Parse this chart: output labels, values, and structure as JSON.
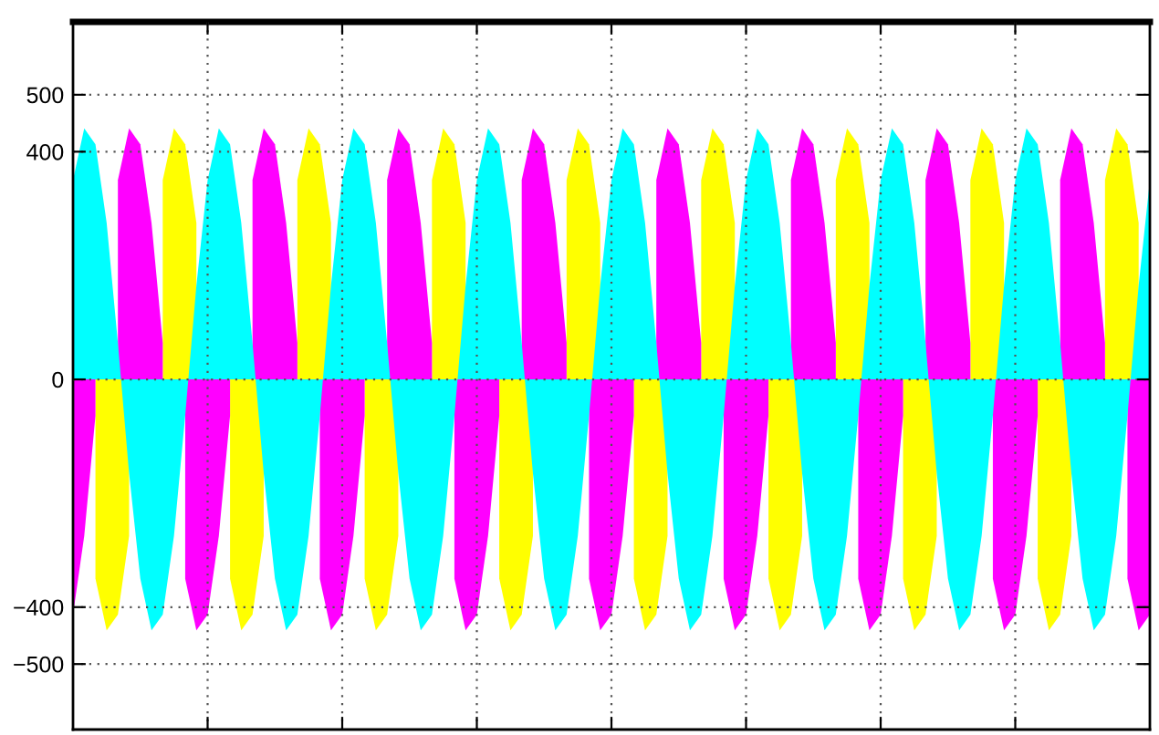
{
  "chart_data": {
    "type": "area",
    "categories": [
      null,
      null,
      null,
      null,
      null,
      null,
      null,
      null,
      null,
      null,
      null,
      null,
      null,
      null,
      null,
      null,
      null,
      null,
      null,
      null,
      null,
      null,
      null,
      null,
      null,
      null,
      null,
      null,
      null,
      null,
      null,
      null,
      null,
      null,
      null,
      null,
      null,
      null,
      null,
      null,
      null,
      null,
      null,
      null,
      null,
      null,
      null,
      null,
      null,
      null,
      null,
      null,
      null,
      null,
      null,
      null,
      null,
      null,
      null,
      null,
      null,
      null,
      null,
      null,
      null,
      null,
      null,
      null,
      null,
      null,
      null,
      null,
      null,
      null,
      null,
      null,
      null,
      null,
      null,
      null,
      null,
      null,
      null,
      null,
      null,
      null,
      null,
      null,
      null,
      null,
      null,
      null,
      null,
      null,
      null,
      null,
      null
    ],
    "series": [
      {
        "color": "#ffff00",
        "values": [
          null,
          null,
          -350,
          -441,
          -413,
          -275,
          null,
          null,
          350,
          441,
          413,
          275,
          null,
          null,
          -350,
          -441,
          -413,
          -275,
          null,
          null,
          350,
          441,
          413,
          275,
          null,
          null,
          -350,
          -441,
          -413,
          -275,
          null,
          null,
          350,
          441,
          413,
          275,
          null,
          null,
          -350,
          -441,
          -413,
          -275,
          null,
          null,
          350,
          441,
          413,
          275,
          null,
          null,
          -350,
          -441,
          -413,
          -275,
          null,
          null,
          350,
          441,
          413,
          275,
          null,
          null,
          -350,
          -441,
          -413,
          -275,
          null,
          null,
          350,
          441,
          413,
          275,
          null,
          null,
          -350,
          -441,
          -413,
          -275,
          null,
          null,
          350,
          441,
          413,
          275,
          null,
          null,
          -350,
          -441,
          -413,
          -275,
          null,
          null,
          350,
          441,
          413,
          275,
          null
        ]
      },
      {
        "color": "#ff00ff",
        "values": [
          -413,
          -275,
          -64,
          null,
          350,
          441,
          413,
          275,
          64,
          null,
          -350,
          -441,
          -413,
          -275,
          -64,
          null,
          350,
          441,
          413,
          275,
          64,
          null,
          -350,
          -441,
          -413,
          -275,
          -64,
          null,
          350,
          441,
          413,
          275,
          64,
          null,
          -350,
          -441,
          -413,
          -275,
          -64,
          null,
          350,
          441,
          413,
          275,
          64,
          null,
          -350,
          -441,
          -413,
          -275,
          -64,
          null,
          350,
          441,
          413,
          275,
          64,
          null,
          -350,
          -441,
          -413,
          -275,
          -64,
          null,
          350,
          441,
          413,
          275,
          64,
          null,
          -350,
          -441,
          -413,
          -275,
          -64,
          null,
          350,
          441,
          413,
          275,
          64,
          null,
          -350,
          -441,
          -413,
          -275,
          -64,
          null,
          350,
          441,
          413,
          275,
          64,
          null,
          -350,
          -441,
          -413
        ]
      },
      {
        "color": "#00ffff",
        "values": [
          350,
          441,
          413,
          275,
          64,
          -165,
          -350,
          -441,
          -413,
          -275,
          -64,
          165,
          350,
          441,
          413,
          275,
          64,
          -165,
          -350,
          -441,
          -413,
          -275,
          -64,
          165,
          350,
          441,
          413,
          275,
          64,
          -165,
          -350,
          -441,
          -413,
          -275,
          -64,
          165,
          350,
          441,
          413,
          275,
          64,
          -165,
          -350,
          -441,
          -413,
          -275,
          -64,
          165,
          350,
          441,
          413,
          275,
          64,
          -165,
          -350,
          -441,
          -413,
          -275,
          -64,
          165,
          350,
          441,
          413,
          275,
          64,
          -165,
          -350,
          -441,
          -413,
          -275,
          -64,
          165,
          350,
          441,
          413,
          275,
          64,
          -165,
          -350,
          -441,
          -413,
          -275,
          -64,
          165,
          350,
          441,
          413,
          275,
          64,
          -165,
          -350,
          -441,
          -413,
          -275,
          -64,
          165,
          350
        ]
      }
    ],
    "ylim": [
      -615,
      628
    ],
    "yticks": [
      -500,
      -400,
      0,
      400,
      500
    ],
    "grid": true,
    "tick_labels": "y"
  }
}
